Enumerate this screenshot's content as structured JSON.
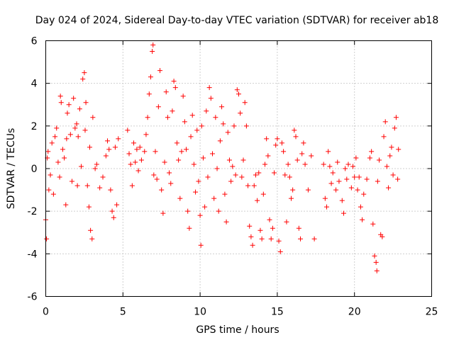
{
  "chart_data": {
    "type": "scatter",
    "title": "Day 024 of 2024, Sidereal Day-to-day VTEC variation (SDTVAR) for receiver ab18",
    "xlabel": "GPS time / hours",
    "ylabel": "SDTVAR / TECUs",
    "xlim": [
      0,
      25
    ],
    "ylim": [
      -6,
      6
    ],
    "xticks": [
      "0",
      "5",
      "10",
      "15",
      "20",
      "25"
    ],
    "yticks": [
      "-6",
      "-4",
      "-2",
      "0",
      "2",
      "4",
      "6"
    ],
    "grid": true,
    "marker": "plus",
    "colors": {
      "series": "#ff0000",
      "grid": "#a0a0a0",
      "frame": "#000000"
    },
    "series": [
      {
        "name": "SDTVAR",
        "points": [
          [
            0.0,
            -2.4
          ],
          [
            0.05,
            -3.3
          ],
          [
            0.1,
            0.5
          ],
          [
            0.15,
            0.8
          ],
          [
            0.2,
            -1.0
          ],
          [
            0.3,
            -0.3
          ],
          [
            0.4,
            1.2
          ],
          [
            0.5,
            -1.2
          ],
          [
            0.6,
            1.5
          ],
          [
            0.7,
            1.9
          ],
          [
            0.8,
            0.3
          ],
          [
            0.9,
            -0.4
          ],
          [
            0.95,
            3.4
          ],
          [
            1.0,
            3.1
          ],
          [
            1.1,
            0.9
          ],
          [
            1.2,
            0.5
          ],
          [
            1.3,
            -1.7
          ],
          [
            1.35,
            1.4
          ],
          [
            1.4,
            2.6
          ],
          [
            1.5,
            3.0
          ],
          [
            1.6,
            1.6
          ],
          [
            1.7,
            -0.6
          ],
          [
            1.8,
            3.3
          ],
          [
            1.9,
            1.9
          ],
          [
            2.0,
            2.1
          ],
          [
            2.05,
            -0.8
          ],
          [
            2.1,
            1.5
          ],
          [
            2.2,
            2.8
          ],
          [
            2.3,
            0.1
          ],
          [
            2.4,
            4.2
          ],
          [
            2.5,
            4.5
          ],
          [
            2.55,
            1.8
          ],
          [
            2.6,
            3.1
          ],
          [
            2.7,
            -0.8
          ],
          [
            2.8,
            -1.8
          ],
          [
            2.85,
            1.0
          ],
          [
            2.9,
            -2.9
          ],
          [
            3.0,
            -3.3
          ],
          [
            3.05,
            2.4
          ],
          [
            3.2,
            0.0
          ],
          [
            3.3,
            0.2
          ],
          [
            3.5,
            -0.9
          ],
          [
            3.7,
            -0.4
          ],
          [
            3.9,
            0.6
          ],
          [
            4.0,
            1.3
          ],
          [
            4.1,
            0.9
          ],
          [
            4.2,
            -1.0
          ],
          [
            4.3,
            -2.0
          ],
          [
            4.4,
            -2.3
          ],
          [
            4.5,
            1.0
          ],
          [
            4.6,
            -1.7
          ],
          [
            4.7,
            1.4
          ],
          [
            5.3,
            1.8
          ],
          [
            5.4,
            0.7
          ],
          [
            5.5,
            0.2
          ],
          [
            5.6,
            -0.8
          ],
          [
            5.7,
            1.2
          ],
          [
            5.8,
            0.3
          ],
          [
            5.9,
            0.9
          ],
          [
            6.0,
            -0.1
          ],
          [
            6.1,
            1.0
          ],
          [
            6.2,
            0.4
          ],
          [
            6.4,
            0.8
          ],
          [
            6.5,
            1.6
          ],
          [
            6.6,
            2.4
          ],
          [
            6.7,
            3.5
          ],
          [
            6.8,
            4.3
          ],
          [
            6.9,
            5.5
          ],
          [
            6.95,
            5.8
          ],
          [
            7.0,
            -0.3
          ],
          [
            7.1,
            0.8
          ],
          [
            7.2,
            -0.5
          ],
          [
            7.3,
            2.9
          ],
          [
            7.4,
            4.6
          ],
          [
            7.5,
            -1.0
          ],
          [
            7.6,
            -2.1
          ],
          [
            7.7,
            0.3
          ],
          [
            7.8,
            3.6
          ],
          [
            7.9,
            2.4
          ],
          [
            8.0,
            -0.2
          ],
          [
            8.1,
            -0.7
          ],
          [
            8.2,
            2.7
          ],
          [
            8.3,
            4.1
          ],
          [
            8.4,
            3.8
          ],
          [
            8.5,
            1.2
          ],
          [
            8.6,
            0.4
          ],
          [
            8.7,
            -1.4
          ],
          [
            8.8,
            0.8
          ],
          [
            8.9,
            3.4
          ],
          [
            9.0,
            2.2
          ],
          [
            9.1,
            0.9
          ],
          [
            9.2,
            -2.0
          ],
          [
            9.3,
            -2.8
          ],
          [
            9.4,
            1.5
          ],
          [
            9.5,
            2.5
          ],
          [
            9.6,
            0.2
          ],
          [
            9.7,
            -1.1
          ],
          [
            9.8,
            1.8
          ],
          [
            9.9,
            -0.6
          ],
          [
            10.0,
            -2.2
          ],
          [
            10.05,
            -3.6
          ],
          [
            10.1,
            2.0
          ],
          [
            10.2,
            0.5
          ],
          [
            10.3,
            -1.8
          ],
          [
            10.4,
            2.7
          ],
          [
            10.5,
            -0.4
          ],
          [
            10.6,
            3.8
          ],
          [
            10.7,
            3.3
          ],
          [
            10.8,
            0.7
          ],
          [
            10.9,
            -1.4
          ],
          [
            11.0,
            2.4
          ],
          [
            11.1,
            0.0
          ],
          [
            11.2,
            -2.0
          ],
          [
            11.3,
            1.3
          ],
          [
            11.4,
            2.9
          ],
          [
            11.5,
            2.1
          ],
          [
            11.6,
            -1.2
          ],
          [
            11.7,
            -2.5
          ],
          [
            11.8,
            1.7
          ],
          [
            11.9,
            0.4
          ],
          [
            12.0,
            -0.6
          ],
          [
            12.1,
            0.1
          ],
          [
            12.2,
            2.0
          ],
          [
            12.3,
            -0.3
          ],
          [
            12.4,
            3.7
          ],
          [
            12.5,
            3.5
          ],
          [
            12.6,
            2.6
          ],
          [
            12.7,
            -0.4
          ],
          [
            12.8,
            0.4
          ],
          [
            12.9,
            3.1
          ],
          [
            13.0,
            2.0
          ],
          [
            13.1,
            -0.8
          ],
          [
            13.2,
            -2.7
          ],
          [
            13.3,
            -3.2
          ],
          [
            13.4,
            -3.6
          ],
          [
            13.5,
            -0.8
          ],
          [
            13.6,
            -0.3
          ],
          [
            13.7,
            -1.5
          ],
          [
            13.8,
            -0.2
          ],
          [
            13.9,
            -2.9
          ],
          [
            14.0,
            -3.3
          ],
          [
            14.1,
            -1.2
          ],
          [
            14.2,
            0.2
          ],
          [
            14.3,
            1.4
          ],
          [
            14.4,
            0.6
          ],
          [
            14.5,
            -2.4
          ],
          [
            14.6,
            -3.3
          ],
          [
            14.7,
            -2.8
          ],
          [
            14.8,
            -0.2
          ],
          [
            14.9,
            1.1
          ],
          [
            15.0,
            1.4
          ],
          [
            15.1,
            -3.4
          ],
          [
            15.2,
            -3.9
          ],
          [
            15.3,
            1.2
          ],
          [
            15.4,
            0.8
          ],
          [
            15.5,
            -0.3
          ],
          [
            15.6,
            -2.5
          ],
          [
            15.7,
            0.2
          ],
          [
            15.8,
            -0.4
          ],
          [
            15.9,
            -1.4
          ],
          [
            16.0,
            -1.0
          ],
          [
            16.1,
            1.8
          ],
          [
            16.2,
            1.5
          ],
          [
            16.3,
            0.4
          ],
          [
            16.4,
            -2.8
          ],
          [
            16.5,
            -3.3
          ],
          [
            16.6,
            0.7
          ],
          [
            16.7,
            1.2
          ],
          [
            16.8,
            0.2
          ],
          [
            17.0,
            -1.0
          ],
          [
            17.2,
            0.6
          ],
          [
            17.4,
            -3.3
          ],
          [
            18.0,
            0.2
          ],
          [
            18.1,
            -1.4
          ],
          [
            18.2,
            -1.8
          ],
          [
            18.3,
            0.8
          ],
          [
            18.4,
            0.1
          ],
          [
            18.5,
            -0.7
          ],
          [
            18.6,
            -0.2
          ],
          [
            18.8,
            -1.0
          ],
          [
            18.9,
            0.3
          ],
          [
            19.0,
            -0.6
          ],
          [
            19.2,
            -1.5
          ],
          [
            19.3,
            -2.1
          ],
          [
            19.4,
            0.0
          ],
          [
            19.5,
            -0.5
          ],
          [
            19.6,
            0.2
          ],
          [
            19.8,
            -0.9
          ],
          [
            19.9,
            0.1
          ],
          [
            20.0,
            -0.4
          ],
          [
            20.1,
            0.5
          ],
          [
            20.2,
            -1.0
          ],
          [
            20.3,
            -0.4
          ],
          [
            20.4,
            -1.8
          ],
          [
            20.5,
            -2.4
          ],
          [
            20.6,
            -1.2
          ],
          [
            20.8,
            -0.5
          ],
          [
            21.0,
            0.5
          ],
          [
            21.1,
            0.8
          ],
          [
            21.2,
            -2.6
          ],
          [
            21.3,
            -4.1
          ],
          [
            21.4,
            -4.4
          ],
          [
            21.45,
            -4.8
          ],
          [
            21.5,
            -0.6
          ],
          [
            21.6,
            0.4
          ],
          [
            21.7,
            -3.1
          ],
          [
            21.8,
            -3.2
          ],
          [
            21.9,
            1.5
          ],
          [
            22.0,
            2.2
          ],
          [
            22.1,
            0.1
          ],
          [
            22.2,
            -0.9
          ],
          [
            22.3,
            0.6
          ],
          [
            22.4,
            1.0
          ],
          [
            22.5,
            -0.3
          ],
          [
            22.6,
            1.9
          ],
          [
            22.7,
            2.4
          ],
          [
            22.8,
            -0.5
          ],
          [
            22.85,
            0.9
          ]
        ]
      }
    ]
  }
}
